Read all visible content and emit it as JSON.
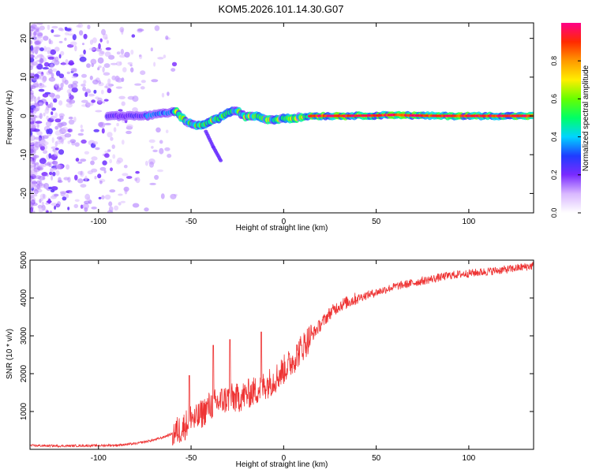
{
  "title": "KOM5.2026.101.14.30.G07",
  "chart_data": [
    {
      "type": "heatmap",
      "name": "spectrogram",
      "xlabel": "Height of straight line (km)",
      "ylabel": "Frequency (Hz)",
      "xlim": [
        -137,
        135
      ],
      "ylim": [
        -25,
        24
      ],
      "xticks": [
        -100,
        -50,
        0,
        50,
        100
      ],
      "yticks": [
        -20,
        -10,
        0,
        10,
        20
      ],
      "ridge": {
        "description_points_x": [
          -75,
          -68,
          -62,
          -58,
          -55,
          -50,
          -45,
          -40,
          -35,
          -30,
          -25,
          -20,
          -15,
          -10,
          -5,
          0,
          5,
          10,
          15,
          30,
          50,
          60,
          70,
          85,
          100,
          120,
          133
        ],
        "frequency": [
          0.0,
          0.4,
          0.8,
          1.2,
          -0.5,
          -2.2,
          -2.6,
          -1.4,
          -0.6,
          0.9,
          1.2,
          -0.3,
          0.1,
          -0.8,
          -1.0,
          -0.5,
          -0.6,
          -0.3,
          0.0,
          0.0,
          0.1,
          0.3,
          0.1,
          0.0,
          0.0,
          0.0,
          0.0
        ]
      },
      "side_branch": {
        "x": [
          -42,
          -38,
          -34
        ],
        "frequency": [
          -4.0,
          -8.0,
          -11.5
        ]
      },
      "colorbar": {
        "label": "Normalized spectral amplitude",
        "ticks": [
          0.0,
          0.2,
          0.4,
          0.6,
          0.8
        ],
        "tick_labels": [
          "0.0",
          "0.2",
          "0.4",
          "0.6",
          "0.8"
        ],
        "range": [
          0,
          1
        ]
      }
    },
    {
      "type": "line",
      "name": "snr",
      "xlabel": "Height of straight line (km)",
      "ylabel": "SNR (10 * v/v)",
      "xlim": [
        -137,
        135
      ],
      "ylim": [
        0,
        5000
      ],
      "xticks": [
        -100,
        -50,
        0,
        50,
        100
      ],
      "yticks": [
        1000,
        2000,
        3000,
        4000,
        5000
      ],
      "series": [
        {
          "name": "SNR",
          "color": "#ee3333",
          "x": [
            -137,
            -120,
            -100,
            -90,
            -80,
            -70,
            -65,
            -60,
            -55,
            -52,
            -50,
            -48,
            -45,
            -40,
            -35,
            -30,
            -25,
            -20,
            -15,
            -10,
            -5,
            0,
            5,
            10,
            15,
            20,
            25,
            30,
            40,
            50,
            60,
            70,
            80,
            90,
            100,
            110,
            120,
            130,
            135
          ],
          "y": [
            100,
            90,
            100,
            110,
            150,
            250,
            320,
            420,
            550,
            700,
            900,
            750,
            900,
            1150,
            1250,
            1350,
            1350,
            1450,
            1550,
            1700,
            1850,
            2100,
            2350,
            2700,
            3000,
            3300,
            3600,
            3800,
            4000,
            4150,
            4300,
            4400,
            4500,
            4600,
            4650,
            4700,
            4750,
            4820,
            4850
          ]
        }
      ],
      "spikes": [
        {
          "x": -51,
          "y": 1950
        },
        {
          "x": -38,
          "y": 2750
        },
        {
          "x": -29,
          "y": 2900
        },
        {
          "x": -12,
          "y": 3100
        }
      ]
    }
  ],
  "colors": {
    "snr_line": "#ee3333",
    "axis": "#000000",
    "background": "#ffffff"
  }
}
